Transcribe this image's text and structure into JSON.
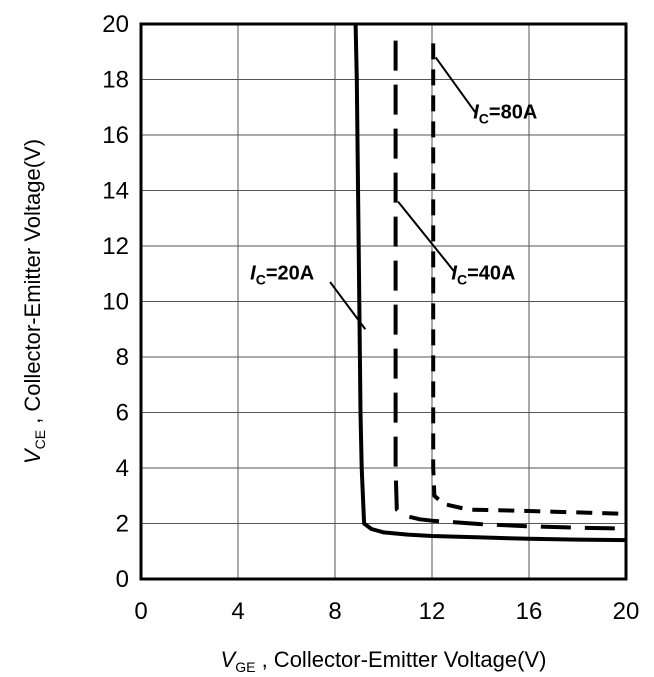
{
  "chart_data": {
    "type": "line",
    "xlabel": {
      "symbol": "V",
      "subscript": "GE",
      "text": " , Collector-Emitter Voltage(V)"
    },
    "ylabel": {
      "symbol": "V",
      "subscript": "CE",
      "text": " , Collector-Emitter Voltage(V)"
    },
    "xlim": [
      0,
      20
    ],
    "ylim": [
      0,
      20
    ],
    "xticks": [
      "0",
      "4",
      "8",
      "12",
      "16",
      "20"
    ],
    "yticks": [
      "0",
      "2",
      "4",
      "6",
      "8",
      "10",
      "12",
      "14",
      "16",
      "18",
      "20"
    ],
    "grid": true,
    "series": [
      {
        "name": "IC=20A",
        "label": {
          "symbol": "I",
          "subscript": "C",
          "value": "=20A"
        },
        "style": "solid",
        "points": [
          [
            8.85,
            20
          ],
          [
            8.9,
            18
          ],
          [
            9.0,
            10
          ],
          [
            9.05,
            6
          ],
          [
            9.1,
            4.0
          ],
          [
            9.2,
            2.0
          ],
          [
            9.5,
            1.8
          ],
          [
            10.0,
            1.68
          ],
          [
            11,
            1.6
          ],
          [
            12,
            1.55
          ],
          [
            14,
            1.5
          ],
          [
            16,
            1.45
          ],
          [
            18,
            1.42
          ],
          [
            20,
            1.4
          ]
        ]
      },
      {
        "name": "IC=40A",
        "label": {
          "symbol": "I",
          "subscript": "C",
          "value": "=40A"
        },
        "style": "long-dash",
        "points": [
          [
            10.5,
            19.4
          ],
          [
            10.5,
            14
          ],
          [
            10.5,
            8
          ],
          [
            10.5,
            4
          ],
          [
            10.55,
            2.5
          ],
          [
            10.8,
            2.3
          ],
          [
            11.5,
            2.15
          ],
          [
            12,
            2.1
          ],
          [
            14,
            1.98
          ],
          [
            16,
            1.9
          ],
          [
            18,
            1.85
          ],
          [
            20,
            1.82
          ]
        ]
      },
      {
        "name": "IC=80A",
        "label": {
          "symbol": "I",
          "subscript": "C",
          "value": "=80A"
        },
        "style": "short-dash",
        "points": [
          [
            12.05,
            19.3
          ],
          [
            12.05,
            14
          ],
          [
            12.05,
            8
          ],
          [
            12.05,
            4
          ],
          [
            12.1,
            3.0
          ],
          [
            12.5,
            2.7
          ],
          [
            13.5,
            2.5
          ],
          [
            16,
            2.45
          ],
          [
            18,
            2.4
          ],
          [
            20,
            2.35
          ]
        ]
      }
    ],
    "annotations": [
      {
        "series": "IC=20A",
        "label_at": [
          4.5,
          10.8
        ],
        "line_from": [
          7.8,
          10.7
        ],
        "line_to": [
          9.25,
          9.0
        ]
      },
      {
        "series": "IC=40A",
        "label_at": [
          12.8,
          10.8
        ],
        "line_from": [
          12.9,
          11.1
        ],
        "line_to": [
          10.6,
          13.6
        ]
      },
      {
        "series": "IC=80A",
        "label_at": [
          13.7,
          16.6
        ],
        "line_from": [
          13.8,
          16.8
        ],
        "line_to": [
          12.15,
          18.8
        ]
      }
    ]
  }
}
